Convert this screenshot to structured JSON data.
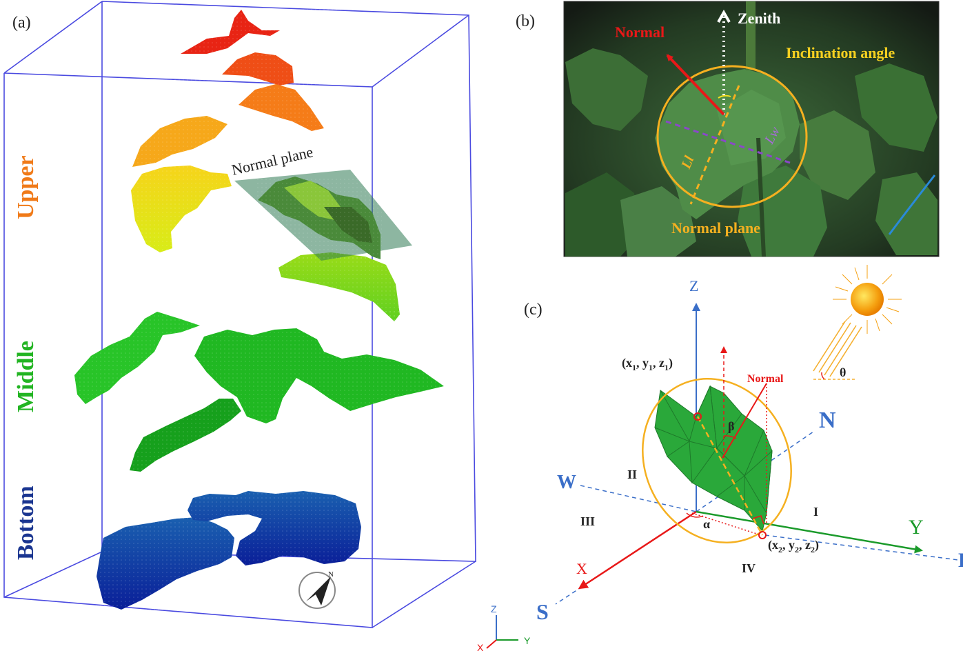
{
  "panel_a": {
    "label": "(a)",
    "layer_upper": "Upper",
    "layer_middle": "Middle",
    "layer_bottom": "Bottom",
    "normal_plane_label": "Normal plane",
    "compass_letter": "N",
    "colors": {
      "upper": "#f07a18",
      "middle": "#22b422",
      "bottom": "#1a3590",
      "box": "#4a4ae0"
    }
  },
  "panel_b": {
    "label": "(b)",
    "zenith": "Zenith",
    "normal": "Normal",
    "inclination_angle": "Inclination angle",
    "ll": "Ll",
    "lw": "Lw",
    "normal_plane": "Normal plane"
  },
  "panel_c": {
    "label": "(c)",
    "axis_z": "Z",
    "axis_x": "X",
    "axis_y": "Y",
    "dir_n": "N",
    "dir_w": "W",
    "dir_s": "S",
    "dir_e": "E",
    "quadrant_1": "I",
    "quadrant_2": "II",
    "quadrant_3": "III",
    "quadrant_4": "IV",
    "point1_base": "(x",
    "point2_base": "(x",
    "normal": "Normal",
    "beta": "β",
    "alpha": "α",
    "theta": "θ",
    "triad_z": "Z",
    "triad_x": "X",
    "triad_y": "Y"
  }
}
